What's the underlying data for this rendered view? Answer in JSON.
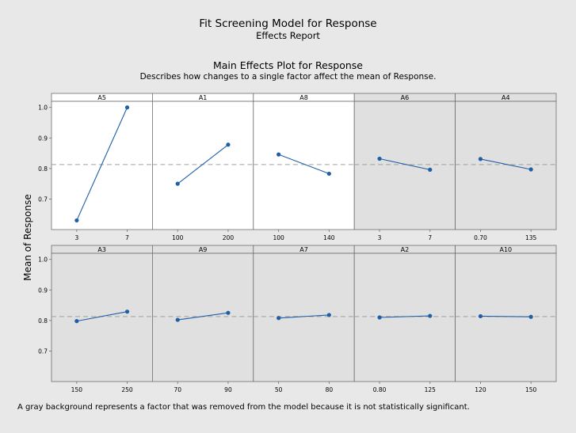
{
  "report": {
    "title": "Fit Screening Model for Response",
    "subtitle": "Effects Report",
    "plot_title": "Main Effects Plot for Response",
    "plot_description": "Describes how changes to a single factor affect the mean of Response.",
    "ylabel": "Mean of Response",
    "footnote": "A gray background represents a factor that was removed from the model because it is not statistically significant."
  },
  "colors": {
    "background": "#e8e8e8",
    "significant_panel": "#ffffff",
    "removed_panel": "#e0e0e0",
    "line": "#1f5fa6",
    "reference_line": "#a0a0a0",
    "border": "#6e6e6e"
  },
  "chart_data": {
    "type": "line",
    "title": "Main Effects Plot for Response",
    "ylabel": "Mean of Response",
    "ylim": [
      0.6,
      1.02
    ],
    "yticks": [
      "0.7",
      "0.8",
      "0.9",
      "1.0"
    ],
    "ytick_values": [
      0.7,
      0.8,
      0.9,
      1.0
    ],
    "reference_mean": 0.813,
    "grid": false,
    "panels": [
      {
        "factor": "A5",
        "significant": true,
        "x": [
          "3",
          "7"
        ],
        "y": [
          0.63,
          1.0
        ]
      },
      {
        "factor": "A1",
        "significant": true,
        "x": [
          "100",
          "200"
        ],
        "y": [
          0.75,
          0.878
        ]
      },
      {
        "factor": "A8",
        "significant": true,
        "x": [
          "100",
          "140"
        ],
        "y": [
          0.846,
          0.783
        ]
      },
      {
        "factor": "A6",
        "significant": false,
        "x": [
          "3",
          "7"
        ],
        "y": [
          0.832,
          0.796
        ]
      },
      {
        "factor": "A4",
        "significant": false,
        "x": [
          "0.70",
          "135"
        ],
        "y": [
          0.831,
          0.797
        ]
      },
      {
        "factor": "A3",
        "significant": false,
        "x": [
          "150",
          "250"
        ],
        "y": [
          0.798,
          0.829
        ]
      },
      {
        "factor": "A9",
        "significant": false,
        "x": [
          "70",
          "90"
        ],
        "y": [
          0.802,
          0.825
        ]
      },
      {
        "factor": "A7",
        "significant": false,
        "x": [
          "50",
          "80"
        ],
        "y": [
          0.808,
          0.818
        ]
      },
      {
        "factor": "A2",
        "significant": false,
        "x": [
          "0.80",
          "125"
        ],
        "y": [
          0.81,
          0.815
        ]
      },
      {
        "factor": "A10",
        "significant": false,
        "x": [
          "120",
          "150"
        ],
        "y": [
          0.814,
          0.812
        ]
      }
    ]
  }
}
